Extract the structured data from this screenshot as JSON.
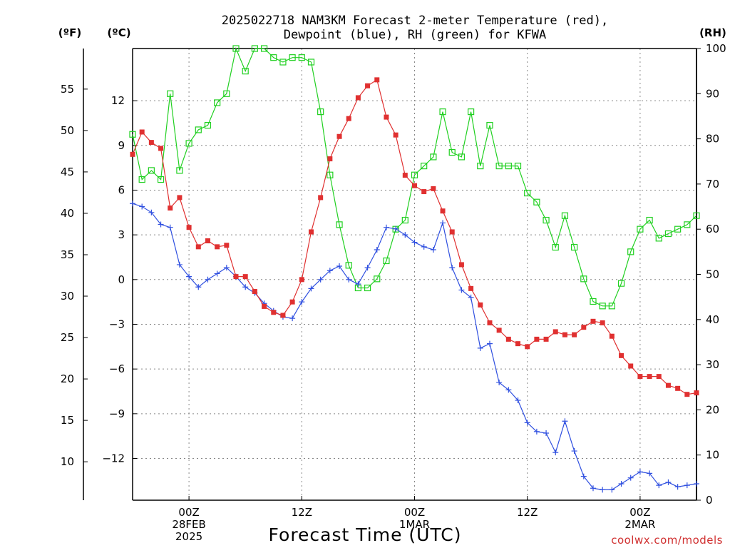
{
  "chart_data": {
    "type": "line",
    "title": "2025022718 NAM3KM Forecast 2-meter Temperature (red),",
    "title_line2": "Dewpoint (blue), RH (green) for KFWA",
    "xlabel": "Forecast Time (UTC)",
    "credit": "coolwx.com/models",
    "x_ticks": [
      {
        "x": 6,
        "lines": [
          "00Z",
          "28FEB",
          "2025"
        ]
      },
      {
        "x": 18,
        "lines": [
          "12Z"
        ]
      },
      {
        "x": 30,
        "lines": [
          "00Z",
          "1MAR"
        ]
      },
      {
        "x": 42,
        "lines": [
          "12Z"
        ]
      },
      {
        "x": 54,
        "lines": [
          "00Z",
          "2MAR"
        ]
      }
    ],
    "x_unit_note": "hours after 2025-02-27 18Z",
    "xlim": [
      0,
      60
    ],
    "y_left_c": {
      "label": "(ºC)",
      "ticks": [
        12,
        9,
        6,
        3,
        0,
        -3,
        -6,
        -9,
        -12
      ],
      "ylim": [
        -14.8,
        15.5
      ]
    },
    "y_left_f": {
      "label": "(ºF)",
      "ticks": [
        55,
        50,
        45,
        40,
        35,
        30,
        25,
        20,
        15,
        10
      ]
    },
    "y_right": {
      "label": "(RH)",
      "ticks": [
        100,
        90,
        80,
        70,
        60,
        50,
        40,
        30,
        20,
        10,
        0
      ],
      "ylim": [
        0,
        100
      ]
    },
    "grid": true,
    "series": [
      {
        "name": "Temperature",
        "color": "#e03030",
        "marker": "filled-square",
        "axis": "celsius",
        "x": [
          0,
          1,
          2,
          3,
          4,
          5,
          6,
          7,
          8,
          9,
          10,
          11,
          12,
          13,
          14,
          15,
          16,
          17,
          18,
          19,
          20,
          21,
          22,
          23,
          24,
          25,
          26,
          27,
          28,
          29,
          30,
          31,
          32,
          33,
          34,
          35,
          36,
          37,
          38,
          39,
          40,
          41,
          42,
          43,
          44,
          45,
          46,
          47,
          48,
          49,
          50,
          51,
          52,
          53,
          54,
          55,
          56,
          57,
          58,
          59,
          60
        ],
        "values": [
          8.4,
          9.9,
          9.2,
          8.8,
          4.8,
          5.5,
          3.5,
          2.2,
          2.6,
          2.2,
          2.3,
          0.2,
          0.2,
          -0.8,
          -1.8,
          -2.2,
          -2.4,
          -1.5,
          0,
          3.2,
          5.5,
          8.1,
          9.6,
          10.8,
          12.2,
          13,
          13.4,
          10.9,
          9.7,
          7,
          6.3,
          5.9,
          6.1,
          4.6,
          3.2,
          1,
          -0.6,
          -1.7,
          -2.9,
          -3.4,
          -4,
          -4.3,
          -4.5,
          -4,
          -4,
          -3.5,
          -3.7,
          -3.7,
          -3.2,
          -2.8,
          -2.9,
          -3.8,
          -5.1,
          -5.8,
          -6.5,
          -6.5,
          -6.5,
          -7.1,
          -7.3,
          -7.7,
          -7.6
        ]
      },
      {
        "name": "Dewpoint",
        "color": "#3050e0",
        "marker": "plus",
        "axis": "celsius",
        "x": [
          0,
          1,
          2,
          3,
          4,
          5,
          6,
          7,
          8,
          9,
          10,
          11,
          12,
          13,
          14,
          15,
          16,
          17,
          18,
          19,
          20,
          21,
          22,
          23,
          24,
          25,
          26,
          27,
          28,
          29,
          30,
          31,
          32,
          33,
          34,
          35,
          36,
          37,
          38,
          39,
          40,
          41,
          42,
          43,
          44,
          45,
          46,
          47,
          48,
          49,
          50,
          51,
          52,
          53,
          54,
          55,
          56,
          57,
          58,
          59,
          60
        ],
        "values": [
          5.1,
          4.9,
          4.5,
          3.7,
          3.5,
          1,
          0.2,
          -0.5,
          0,
          0.4,
          0.8,
          0.2,
          -0.5,
          -0.9,
          -1.6,
          -2.1,
          -2.5,
          -2.6,
          -1.5,
          -0.6,
          0,
          0.6,
          0.9,
          0,
          -0.3,
          0.8,
          2,
          3.5,
          3.4,
          3,
          2.5,
          2.2,
          2,
          3.8,
          0.8,
          -0.7,
          -1.2,
          -4.6,
          -4.3,
          -6.9,
          -7.4,
          -8.1,
          -9.6,
          -10.2,
          -10.3,
          -11.6,
          -9.5,
          -11.5,
          -13.2,
          -14,
          -14.1,
          -14.1,
          -13.7,
          -13.3,
          -12.9,
          -13,
          -13.8,
          -13.6,
          -13.9,
          -13.8,
          -13.7
        ]
      },
      {
        "name": "RH",
        "color": "#20d020",
        "marker": "open-square",
        "axis": "rh",
        "x": [
          0,
          1,
          2,
          3,
          4,
          5,
          6,
          7,
          8,
          9,
          10,
          11,
          12,
          13,
          14,
          15,
          16,
          17,
          18,
          19,
          20,
          21,
          22,
          23,
          24,
          25,
          26,
          27,
          28,
          29,
          30,
          31,
          32,
          33,
          34,
          35,
          36,
          37,
          38,
          39,
          40,
          41,
          42,
          43,
          44,
          45,
          46,
          47,
          48,
          49,
          50,
          51,
          52,
          53,
          54,
          55,
          56,
          57,
          58,
          59,
          60
        ],
        "values": [
          81,
          71,
          73,
          71,
          90,
          73,
          79,
          82,
          83,
          88,
          90,
          100,
          95,
          100,
          100,
          98,
          97,
          98,
          98,
          97,
          86,
          72,
          61,
          52,
          47,
          47,
          49,
          53,
          60,
          62,
          72,
          74,
          76,
          86,
          77,
          76,
          86,
          74,
          83,
          74,
          74,
          74,
          68,
          66,
          62,
          56,
          63,
          56,
          49,
          44,
          43,
          43,
          48,
          55,
          60,
          62,
          58,
          59,
          60,
          61,
          63
        ]
      }
    ]
  }
}
